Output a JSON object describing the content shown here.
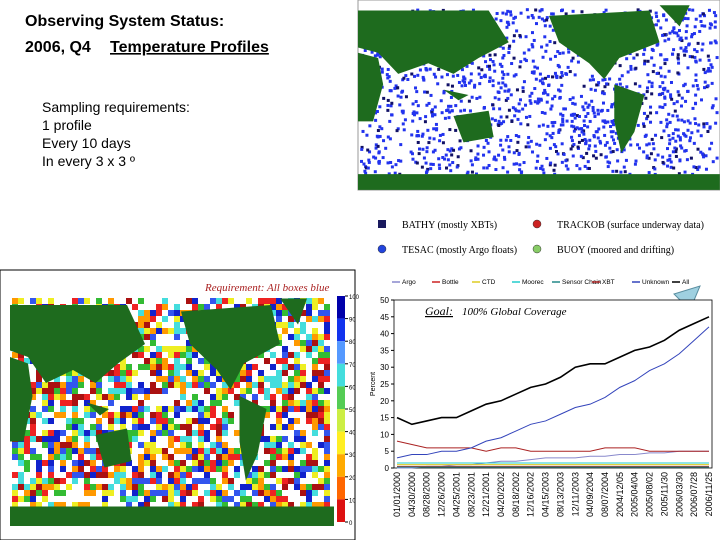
{
  "header": {
    "title_line1": "Observing System Status:",
    "title_line2": "2006, Q4",
    "title_link": "Temperature Profiles"
  },
  "requirements": [
    "Sampling requirements:",
    "1 profile",
    "Every 10 days",
    "In every 3 x 3 º"
  ],
  "map_legend": [
    {
      "label": "BATHY (mostly XBTs)",
      "color": "#1a1a5e"
    },
    {
      "label": "TRACKOB (surface underway data)",
      "color": "#cc2222"
    },
    {
      "label": "TESAC (mostly Argo floats)",
      "color": "#2244dd"
    },
    {
      "label": "BUOY (moored and drifting)",
      "color": "#88cc66"
    }
  ],
  "coverage_map": {
    "caption": "Requirement: All boxes blue",
    "colorbar_ticks": [
      100,
      90,
      80,
      70,
      60,
      50,
      40,
      30,
      20,
      10,
      0
    ]
  },
  "chart_data": {
    "type": "line",
    "ylabel": "Percent",
    "annotation": {
      "goal": "Goal:",
      "text": "100% Global Coverage"
    },
    "categories": [
      "01/01/2000",
      "04/30/2000",
      "08/28/2000",
      "12/26/2000",
      "04/25/2001",
      "08/23/2001",
      "12/21/2001",
      "04/20/2002",
      "08/18/2002",
      "12/16/2002",
      "04/15/2003",
      "08/13/2003",
      "12/11/2003",
      "04/09/2004",
      "08/07/2004",
      "2004/12/05",
      "2005/04/04",
      "2005/08/02",
      "2005/11/30",
      "2006/03/30",
      "2006/07/28",
      "2006/11/25"
    ],
    "series": [
      {
        "name": "Argo",
        "color": "#8888cc",
        "values": [
          0,
          0,
          0.5,
          0.5,
          1,
          1,
          1.5,
          2,
          2,
          2.5,
          3,
          3,
          3,
          3.5,
          3.5,
          4,
          4,
          4.5,
          4.5,
          5,
          5,
          5
        ]
      },
      {
        "name": "Bottle",
        "color": "#cc2222",
        "values": [
          0.5,
          0.5,
          0.5,
          0.5,
          0.5,
          0.5,
          0.5,
          0.5,
          0.5,
          0.5,
          0.5,
          0.5,
          0.5,
          0.5,
          0.5,
          0.5,
          0.5,
          0.5,
          0.5,
          0.5,
          0.5,
          0.5
        ]
      },
      {
        "name": "CTD",
        "color": "#ddcc22",
        "values": [
          1,
          1,
          1,
          1,
          1,
          1,
          1,
          1,
          1,
          1,
          1,
          1,
          1,
          1,
          1,
          1,
          1,
          1,
          1,
          1,
          1,
          1
        ]
      },
      {
        "name": "Moorec",
        "color": "#22cccc",
        "values": [
          1.5,
          1.5,
          1.5,
          1.5,
          1.5,
          1.5,
          1.5,
          1.5,
          1.5,
          1.5,
          1.5,
          1.5,
          1.5,
          1.5,
          1.5,
          1.5,
          1.5,
          1.5,
          1.5,
          1.5,
          1.5,
          1.5
        ]
      },
      {
        "name": "Sensor Chain",
        "color": "#228888",
        "values": [
          0.3,
          0.3,
          0.3,
          0.3,
          0.3,
          0.3,
          0.3,
          0.3,
          0.3,
          0.3,
          0.3,
          0.3,
          0.3,
          0.3,
          0.3,
          0.3,
          0.3,
          0.3,
          0.3,
          0.3,
          0.3,
          0.3
        ]
      },
      {
        "name": "XBT",
        "color": "#aa2222",
        "values": [
          8,
          7,
          6,
          6,
          6,
          6,
          5,
          6,
          6,
          5,
          5,
          5,
          5,
          5,
          6,
          6,
          6,
          5,
          5,
          5,
          5,
          5
        ]
      },
      {
        "name": "Unknown",
        "color": "#3344bb",
        "values": [
          3,
          4,
          4,
          5,
          5,
          6,
          8,
          9,
          11,
          13,
          14,
          16,
          18,
          19,
          21,
          24,
          26,
          29,
          31,
          34,
          38,
          42
        ]
      },
      {
        "name": "All",
        "color": "#000000",
        "values": [
          15,
          13,
          14,
          15,
          15,
          17,
          19,
          20,
          22,
          24,
          25,
          27,
          30,
          31,
          31,
          33,
          35,
          36,
          38,
          41,
          43,
          45
        ]
      }
    ],
    "ylim": [
      0,
      50
    ],
    "yticks": [
      0,
      5,
      10,
      15,
      20,
      25,
      30,
      35,
      40,
      45,
      50
    ]
  }
}
